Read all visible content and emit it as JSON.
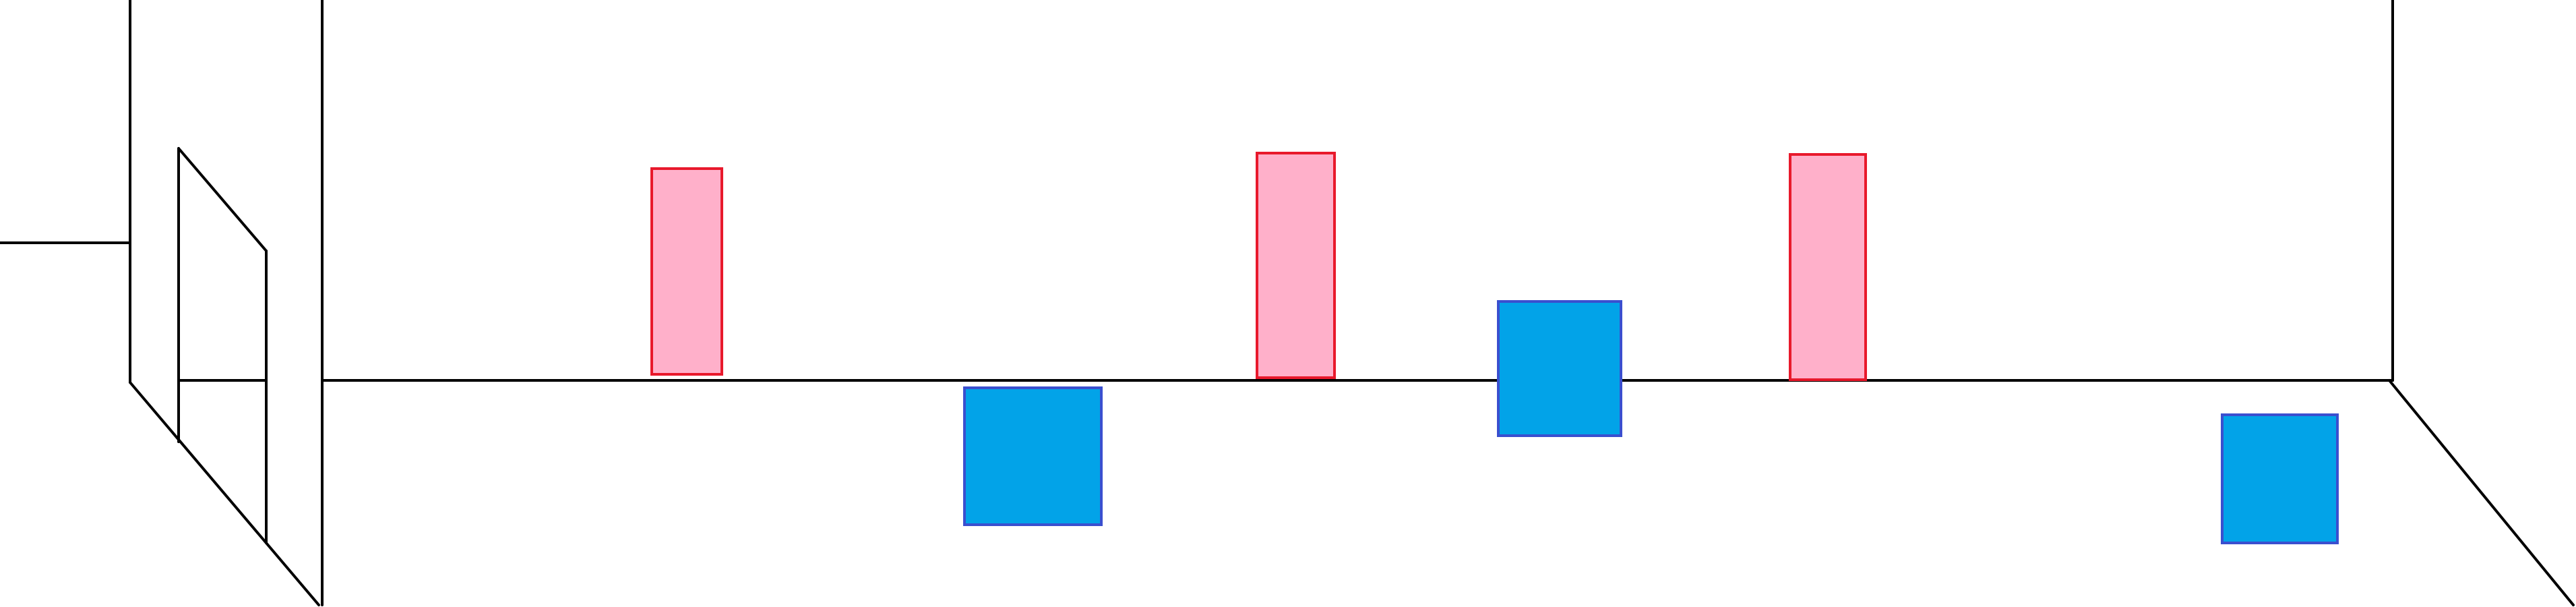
{
  "diagram": {
    "background": "#ffffff",
    "line_color": "#000000",
    "shapes": [
      {
        "kind": "pink-rectangle",
        "fill": "#ffb0ca",
        "stroke": "#e8192c"
      },
      {
        "kind": "blue-square",
        "fill": "#02a3e8",
        "stroke": "#3a4fcf"
      },
      {
        "kind": "pink-rectangle",
        "fill": "#ffb0ca",
        "stroke": "#e8192c"
      },
      {
        "kind": "blue-square",
        "fill": "#02a3e8",
        "stroke": "#3a4fcf"
      },
      {
        "kind": "pink-rectangle",
        "fill": "#ffb0ca",
        "stroke": "#e8192c"
      },
      {
        "kind": "blue-square",
        "fill": "#02a3e8",
        "stroke": "#3a4fcf"
      }
    ]
  }
}
